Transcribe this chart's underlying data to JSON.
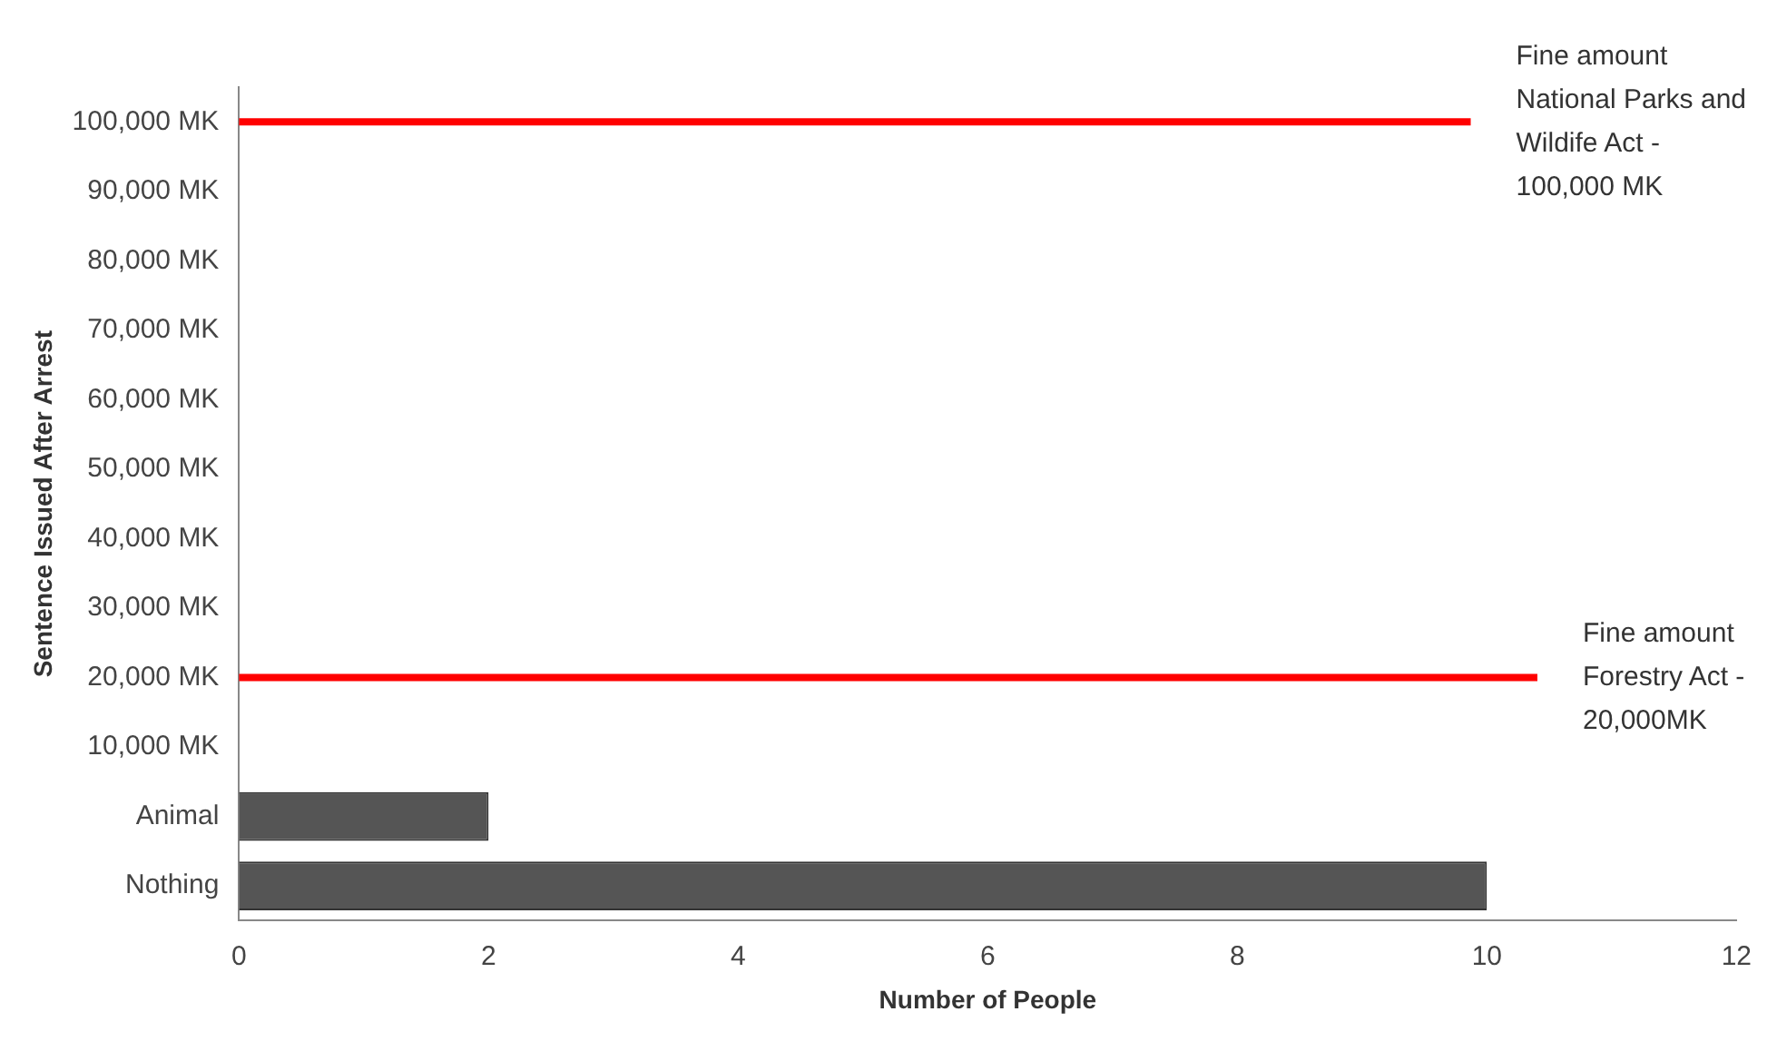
{
  "chart_data": {
    "type": "bar",
    "orientation": "horizontal",
    "categories": [
      "100,000 MK",
      "90,000 MK",
      "80,000 MK",
      "70,000 MK",
      "60,000 MK",
      "50,000 MK",
      "40,000 MK",
      "30,000 MK",
      "20,000 MK",
      "10,000 MK",
      "Animal",
      "Nothing"
    ],
    "values": [
      0,
      0,
      0,
      0,
      0,
      0,
      0,
      0,
      0,
      0,
      2,
      10
    ],
    "color": "#555555",
    "xlim": [
      0,
      12
    ],
    "xticks": [
      0,
      2,
      4,
      6,
      8,
      10,
      12
    ],
    "xlabel": "Number of People",
    "ylabel": "Sentence Issued After Arrest",
    "grid": false,
    "legend": false,
    "ref_lines": [
      {
        "axis": "y",
        "value": "100,000 MK",
        "label": "Fine amount\nNational Parks and\nWildife Act -\n100,000 MK",
        "color": "#ff0000"
      },
      {
        "axis": "y",
        "value": "20,000 MK",
        "label": "Fine amount\nForestry Act -\n20,000MK",
        "color": "#ff0000"
      }
    ]
  }
}
